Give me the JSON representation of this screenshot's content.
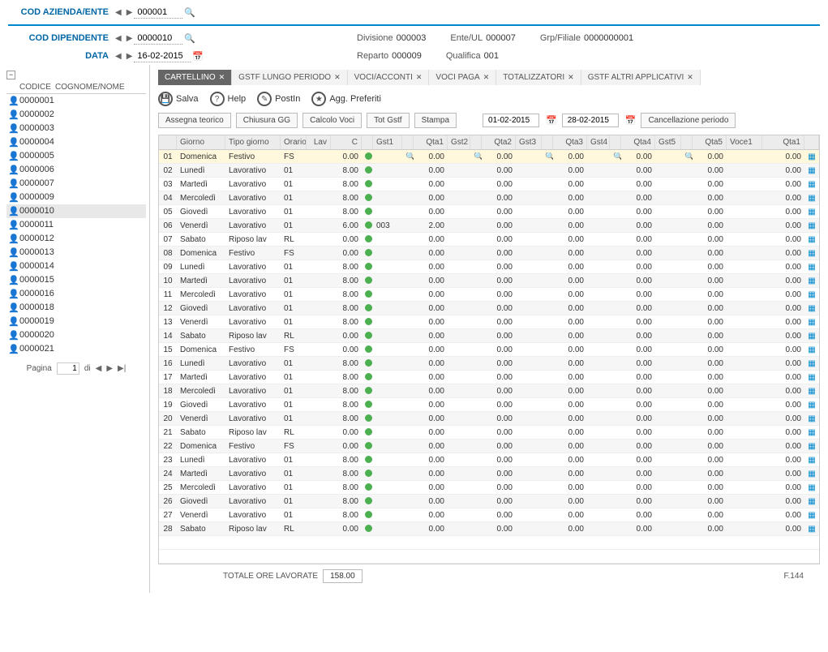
{
  "header": {
    "cod_azienda_label": "COD AZIENDA/ENTE",
    "cod_azienda_value": "000001",
    "cod_dipendente_label": "COD DIPENDENTE",
    "cod_dipendente_value": "0000010",
    "data_label": "DATA",
    "data_value": "16-02-2015",
    "divisione_label": "Divisione",
    "divisione_value": "000003",
    "ente_label": "Ente/UL",
    "ente_value": "000007",
    "grp_label": "Grp/Filiale",
    "grp_value": "0000000001",
    "reparto_label": "Reparto",
    "reparto_value": "000009",
    "qualifica_label": "Qualifica",
    "qualifica_value": "001"
  },
  "sidebar": {
    "col_codice": "CODICE",
    "col_cognome": "COGNOME/NOME",
    "items": [
      "0000001",
      "0000002",
      "0000003",
      "0000004",
      "0000005",
      "0000006",
      "0000007",
      "0000009",
      "0000010",
      "0000011",
      "0000012",
      "0000013",
      "0000014",
      "0000015",
      "0000016",
      "0000018",
      "0000019",
      "0000020",
      "0000021"
    ],
    "selected_index": 8,
    "pager_label": "Pagina",
    "pager_page": "1",
    "pager_di": "di"
  },
  "tabs": [
    {
      "label": "CARTELLINO",
      "active": true
    },
    {
      "label": "GSTF LUNGO PERIODO",
      "active": false
    },
    {
      "label": "VOCI/ACCONTI",
      "active": false
    },
    {
      "label": "VOCI PAGA",
      "active": false
    },
    {
      "label": "TOTALIZZATORI",
      "active": false
    },
    {
      "label": "GSTF ALTRI APPLICATIVI",
      "active": false
    }
  ],
  "toolbar": {
    "salva": "Salva",
    "help": "Help",
    "postin": "PostIn",
    "preferiti": "Agg. Preferiti"
  },
  "actions": {
    "assegna": "Assegna teorico",
    "chiusura": "Chiusura GG",
    "calcolo": "Calcolo Voci",
    "totgstf": "Tot Gstf",
    "stampa": "Stampa",
    "date_from": "01-02-2015",
    "date_to": "28-02-2015",
    "cancel": "Cancellazione periodo"
  },
  "grid": {
    "headers": {
      "giorno": "Giorno",
      "tipo": "Tipo giorno",
      "orario": "Orario",
      "lav": "Lav",
      "c": "C",
      "gst1": "Gst1",
      "qta1": "Qta1",
      "gst2": "Gst2",
      "qta2": "Qta2",
      "gst3": "Gst3",
      "qta3": "Qta3",
      "gst4": "Gst4",
      "qta4": "Qta4",
      "gst5": "Gst5",
      "qta5": "Qta5",
      "voce": "Voce1",
      "qtav": "Qta1"
    },
    "selected_index": 0,
    "rows": [
      {
        "n": "01",
        "d": "Domenica",
        "t": "Festivo",
        "o": "FS",
        "lv": "",
        "c": "0.00",
        "g1": "",
        "q1": "0.00",
        "g2": "",
        "q2": "0.00",
        "q3": "0.00",
        "q4": "0.00",
        "q5": "0.00",
        "qv": "0.00"
      },
      {
        "n": "02",
        "d": "Lunedì",
        "t": "Lavorativo",
        "o": "01",
        "lv": "",
        "c": "8.00",
        "g1": "",
        "q1": "0.00",
        "g2": "",
        "q2": "0.00",
        "q3": "0.00",
        "q4": "0.00",
        "q5": "0.00",
        "qv": "0.00"
      },
      {
        "n": "03",
        "d": "Martedì",
        "t": "Lavorativo",
        "o": "01",
        "lv": "",
        "c": "8.00",
        "g1": "",
        "q1": "0.00",
        "g2": "",
        "q2": "0.00",
        "q3": "0.00",
        "q4": "0.00",
        "q5": "0.00",
        "qv": "0.00"
      },
      {
        "n": "04",
        "d": "Mercoledì",
        "t": "Lavorativo",
        "o": "01",
        "lv": "",
        "c": "8.00",
        "g1": "",
        "q1": "0.00",
        "g2": "",
        "q2": "0.00",
        "q3": "0.00",
        "q4": "0.00",
        "q5": "0.00",
        "qv": "0.00"
      },
      {
        "n": "05",
        "d": "Giovedì",
        "t": "Lavorativo",
        "o": "01",
        "lv": "",
        "c": "8.00",
        "g1": "",
        "q1": "0.00",
        "g2": "",
        "q2": "0.00",
        "q3": "0.00",
        "q4": "0.00",
        "q5": "0.00",
        "qv": "0.00"
      },
      {
        "n": "06",
        "d": "Venerdì",
        "t": "Lavorativo",
        "o": "01",
        "lv": "",
        "c": "6.00",
        "g1": "003",
        "q1": "2.00",
        "g2": "",
        "q2": "0.00",
        "q3": "0.00",
        "q4": "0.00",
        "q5": "0.00",
        "qv": "0.00"
      },
      {
        "n": "07",
        "d": "Sabato",
        "t": "Riposo lav",
        "o": "RL",
        "lv": "",
        "c": "0.00",
        "g1": "",
        "q1": "0.00",
        "g2": "",
        "q2": "0.00",
        "q3": "0.00",
        "q4": "0.00",
        "q5": "0.00",
        "qv": "0.00"
      },
      {
        "n": "08",
        "d": "Domenica",
        "t": "Festivo",
        "o": "FS",
        "lv": "",
        "c": "0.00",
        "g1": "",
        "q1": "0.00",
        "g2": "",
        "q2": "0.00",
        "q3": "0.00",
        "q4": "0.00",
        "q5": "0.00",
        "qv": "0.00"
      },
      {
        "n": "09",
        "d": "Lunedì",
        "t": "Lavorativo",
        "o": "01",
        "lv": "",
        "c": "8.00",
        "g1": "",
        "q1": "0.00",
        "g2": "",
        "q2": "0.00",
        "q3": "0.00",
        "q4": "0.00",
        "q5": "0.00",
        "qv": "0.00"
      },
      {
        "n": "10",
        "d": "Martedì",
        "t": "Lavorativo",
        "o": "01",
        "lv": "",
        "c": "8.00",
        "g1": "",
        "q1": "0.00",
        "g2": "",
        "q2": "0.00",
        "q3": "0.00",
        "q4": "0.00",
        "q5": "0.00",
        "qv": "0.00"
      },
      {
        "n": "11",
        "d": "Mercoledì",
        "t": "Lavorativo",
        "o": "01",
        "lv": "",
        "c": "8.00",
        "g1": "",
        "q1": "0.00",
        "g2": "",
        "q2": "0.00",
        "q3": "0.00",
        "q4": "0.00",
        "q5": "0.00",
        "qv": "0.00"
      },
      {
        "n": "12",
        "d": "Giovedì",
        "t": "Lavorativo",
        "o": "01",
        "lv": "",
        "c": "8.00",
        "g1": "",
        "q1": "0.00",
        "g2": "",
        "q2": "0.00",
        "q3": "0.00",
        "q4": "0.00",
        "q5": "0.00",
        "qv": "0.00"
      },
      {
        "n": "13",
        "d": "Venerdì",
        "t": "Lavorativo",
        "o": "01",
        "lv": "",
        "c": "8.00",
        "g1": "",
        "q1": "0.00",
        "g2": "",
        "q2": "0.00",
        "q3": "0.00",
        "q4": "0.00",
        "q5": "0.00",
        "qv": "0.00"
      },
      {
        "n": "14",
        "d": "Sabato",
        "t": "Riposo lav",
        "o": "RL",
        "lv": "",
        "c": "0.00",
        "g1": "",
        "q1": "0.00",
        "g2": "",
        "q2": "0.00",
        "q3": "0.00",
        "q4": "0.00",
        "q5": "0.00",
        "qv": "0.00"
      },
      {
        "n": "15",
        "d": "Domenica",
        "t": "Festivo",
        "o": "FS",
        "lv": "",
        "c": "0.00",
        "g1": "",
        "q1": "0.00",
        "g2": "",
        "q2": "0.00",
        "q3": "0.00",
        "q4": "0.00",
        "q5": "0.00",
        "qv": "0.00"
      },
      {
        "n": "16",
        "d": "Lunedì",
        "t": "Lavorativo",
        "o": "01",
        "lv": "",
        "c": "8.00",
        "g1": "",
        "q1": "0.00",
        "g2": "",
        "q2": "0.00",
        "q3": "0.00",
        "q4": "0.00",
        "q5": "0.00",
        "qv": "0.00"
      },
      {
        "n": "17",
        "d": "Martedì",
        "t": "Lavorativo",
        "o": "01",
        "lv": "",
        "c": "8.00",
        "g1": "",
        "q1": "0.00",
        "g2": "",
        "q2": "0.00",
        "q3": "0.00",
        "q4": "0.00",
        "q5": "0.00",
        "qv": "0.00"
      },
      {
        "n": "18",
        "d": "Mercoledì",
        "t": "Lavorativo",
        "o": "01",
        "lv": "",
        "c": "8.00",
        "g1": "",
        "q1": "0.00",
        "g2": "",
        "q2": "0.00",
        "q3": "0.00",
        "q4": "0.00",
        "q5": "0.00",
        "qv": "0.00"
      },
      {
        "n": "19",
        "d": "Giovedì",
        "t": "Lavorativo",
        "o": "01",
        "lv": "",
        "c": "8.00",
        "g1": "",
        "q1": "0.00",
        "g2": "",
        "q2": "0.00",
        "q3": "0.00",
        "q4": "0.00",
        "q5": "0.00",
        "qv": "0.00"
      },
      {
        "n": "20",
        "d": "Venerdì",
        "t": "Lavorativo",
        "o": "01",
        "lv": "",
        "c": "8.00",
        "g1": "",
        "q1": "0.00",
        "g2": "",
        "q2": "0.00",
        "q3": "0.00",
        "q4": "0.00",
        "q5": "0.00",
        "qv": "0.00"
      },
      {
        "n": "21",
        "d": "Sabato",
        "t": "Riposo lav",
        "o": "RL",
        "lv": "",
        "c": "0.00",
        "g1": "",
        "q1": "0.00",
        "g2": "",
        "q2": "0.00",
        "q3": "0.00",
        "q4": "0.00",
        "q5": "0.00",
        "qv": "0.00"
      },
      {
        "n": "22",
        "d": "Domenica",
        "t": "Festivo",
        "o": "FS",
        "lv": "",
        "c": "0.00",
        "g1": "",
        "q1": "0.00",
        "g2": "",
        "q2": "0.00",
        "q3": "0.00",
        "q4": "0.00",
        "q5": "0.00",
        "qv": "0.00"
      },
      {
        "n": "23",
        "d": "Lunedì",
        "t": "Lavorativo",
        "o": "01",
        "lv": "",
        "c": "8.00",
        "g1": "",
        "q1": "0.00",
        "g2": "",
        "q2": "0.00",
        "q3": "0.00",
        "q4": "0.00",
        "q5": "0.00",
        "qv": "0.00"
      },
      {
        "n": "24",
        "d": "Martedì",
        "t": "Lavorativo",
        "o": "01",
        "lv": "",
        "c": "8.00",
        "g1": "",
        "q1": "0.00",
        "g2": "",
        "q2": "0.00",
        "q3": "0.00",
        "q4": "0.00",
        "q5": "0.00",
        "qv": "0.00"
      },
      {
        "n": "25",
        "d": "Mercoledì",
        "t": "Lavorativo",
        "o": "01",
        "lv": "",
        "c": "8.00",
        "g1": "",
        "q1": "0.00",
        "g2": "",
        "q2": "0.00",
        "q3": "0.00",
        "q4": "0.00",
        "q5": "0.00",
        "qv": "0.00"
      },
      {
        "n": "26",
        "d": "Giovedì",
        "t": "Lavorativo",
        "o": "01",
        "lv": "",
        "c": "8.00",
        "g1": "",
        "q1": "0.00",
        "g2": "",
        "q2": "0.00",
        "q3": "0.00",
        "q4": "0.00",
        "q5": "0.00",
        "qv": "0.00"
      },
      {
        "n": "27",
        "d": "Venerdì",
        "t": "Lavorativo",
        "o": "01",
        "lv": "",
        "c": "8.00",
        "g1": "",
        "q1": "0.00",
        "g2": "",
        "q2": "0.00",
        "q3": "0.00",
        "q4": "0.00",
        "q5": "0.00",
        "qv": "0.00"
      },
      {
        "n": "28",
        "d": "Sabato",
        "t": "Riposo lav",
        "o": "RL",
        "lv": "",
        "c": "0.00",
        "g1": "",
        "q1": "0.00",
        "g2": "",
        "q2": "0.00",
        "q3": "0.00",
        "q4": "0.00",
        "q5": "0.00",
        "qv": "0.00"
      }
    ]
  },
  "footer": {
    "totale_label": "TOTALE ORE LAVORATE",
    "totale_value": "158.00",
    "right": "F.144"
  }
}
